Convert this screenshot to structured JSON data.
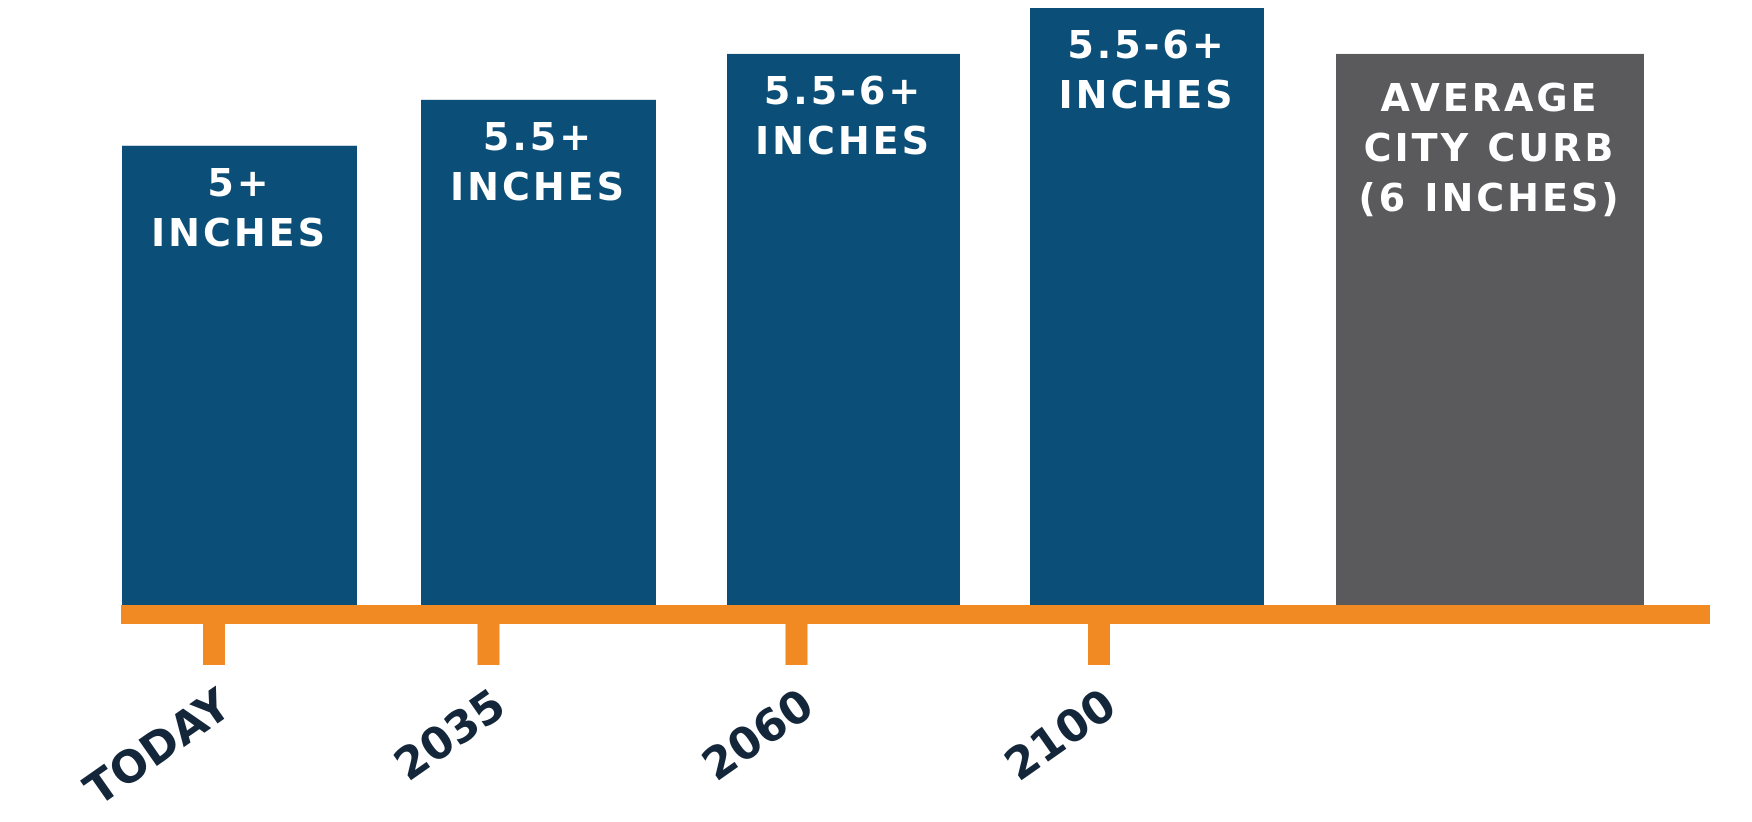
{
  "chart_data": {
    "type": "bar",
    "categories": [
      "TODAY",
      "2035",
      "2060",
      "2100",
      ""
    ],
    "values": [
      5,
      5.5,
      6,
      6.5,
      6
    ],
    "bar_labels": [
      [
        "5+",
        "INCHES"
      ],
      [
        "5.5+",
        "INCHES"
      ],
      [
        "5.5-6+",
        "INCHES"
      ],
      [
        "5.5-6+",
        "INCHES"
      ],
      [
        "AVERAGE",
        "CITY CURB",
        "(6 INCHES)"
      ]
    ],
    "bar_colors": [
      "#0b4f78",
      "#0b4f78",
      "#0b4f78",
      "#0b4f78",
      "#5a5a5c"
    ],
    "axis_color": "#f28a24",
    "ticks_shown": [
      true,
      true,
      true,
      true,
      false
    ],
    "tick_label_rotation": -35,
    "title": "",
    "xlabel": "",
    "ylabel": "",
    "ylim": [
      0,
      6.5
    ],
    "grid": false,
    "legend": "none"
  }
}
